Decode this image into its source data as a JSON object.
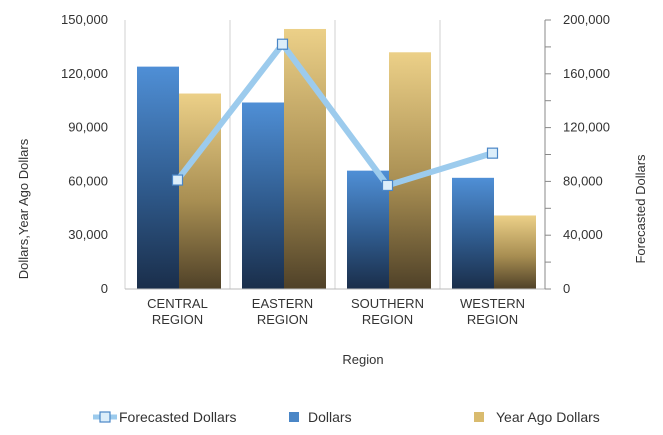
{
  "chart_data": {
    "type": "bar",
    "categories": [
      "CENTRAL REGION",
      "EASTERN REGION",
      "SOUTHERN REGION",
      "WESTERN REGION"
    ],
    "xlabel": "Region",
    "ylabel": "Dollars,Year Ago Dollars",
    "y2label": "Forecasted Dollars",
    "ylim": [
      0,
      150000
    ],
    "y2lim": [
      0,
      200000
    ],
    "yticks": [
      "150,000",
      "120,000",
      "90,000",
      "60,000",
      "30,000",
      "0"
    ],
    "y2ticks": [
      "200,000",
      "160,000",
      "120,000",
      "80,000",
      "40,000",
      "0"
    ],
    "grid": "vertical",
    "legend_position": "bottom",
    "series": [
      {
        "name": "Dollars",
        "type": "bar",
        "axis": "left",
        "color": "#4a86c6",
        "values": [
          124000,
          104000,
          66000,
          62000
        ]
      },
      {
        "name": "Year Ago Dollars",
        "type": "bar",
        "axis": "left",
        "color": "#d9bb6e",
        "values": [
          109000,
          145000,
          132000,
          41000
        ]
      },
      {
        "name": "Forecasted Dollars",
        "type": "line",
        "axis": "right",
        "color": "#9ccbed",
        "values": [
          81000,
          182000,
          77000,
          101000
        ]
      }
    ]
  }
}
